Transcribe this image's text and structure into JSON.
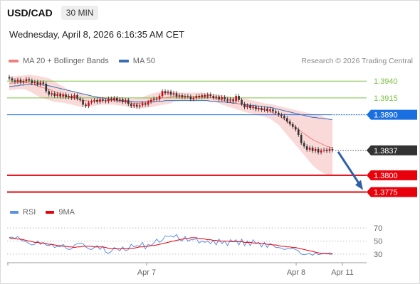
{
  "header": {
    "pair": "USD/CAD",
    "timeframe": "30 MIN"
  },
  "dateline": "Wednesday, April 8, 2026 6:16:35 AM CET",
  "legend": {
    "bollinger": "MA 20 + Bollinger Bands",
    "ma50": "MA 50"
  },
  "credit": "Research © 2026 Trading Central",
  "rsi_legend": {
    "rsi": "RSI",
    "ma": "9MA"
  },
  "colors": {
    "bollinger_band": "#f8cccc",
    "ma20": "#f08080",
    "ma50": "#3a6fb5",
    "resistance": "#7cc242",
    "pivot": "#1a6fe0",
    "support": "#e8000b",
    "current": "#333333",
    "arrow": "#2e5fa8",
    "rsi": "#5b8ee6",
    "rsi_ma": "#e8000b"
  },
  "chart_data": [
    {
      "type": "candlestick",
      "title": "USD/CAD",
      "timeframe": "30 MIN",
      "x_ticks": [
        "Apr 7",
        "Apr 8",
        "Apr 11"
      ],
      "ylim": [
        1.3765,
        1.3955
      ],
      "levels": [
        {
          "value": 1.394,
          "label": "1.3940",
          "kind": "resistance"
        },
        {
          "value": 1.3915,
          "label": "1.3915",
          "kind": "resistance"
        },
        {
          "value": 1.389,
          "label": "1.3890",
          "kind": "pivot"
        },
        {
          "value": 1.3837,
          "label": "1.3837",
          "kind": "current"
        },
        {
          "value": 1.38,
          "label": "1.3800",
          "kind": "support"
        },
        {
          "value": 1.3775,
          "label": "1.3775",
          "kind": "support"
        }
      ],
      "close": [
        1.3944,
        1.3941,
        1.3939,
        1.3942,
        1.3938,
        1.394,
        1.3943,
        1.3941,
        1.3937,
        1.3939,
        1.3935,
        1.3938,
        1.3936,
        1.3925,
        1.392,
        1.3922,
        1.3918,
        1.3921,
        1.3917,
        1.392,
        1.3916,
        1.3918,
        1.3915,
        1.3919,
        1.3914,
        1.3912,
        1.3905,
        1.3903,
        1.3908,
        1.391,
        1.3912,
        1.3909,
        1.3913,
        1.3911,
        1.391,
        1.3914,
        1.3912,
        1.3915,
        1.3911,
        1.3913,
        1.3909,
        1.3912,
        1.3906,
        1.3903,
        1.3905,
        1.3902,
        1.3904,
        1.3907,
        1.3905,
        1.3909,
        1.3912,
        1.3914,
        1.3913,
        1.3918,
        1.3925,
        1.3922,
        1.3924,
        1.392,
        1.3922,
        1.3917,
        1.3919,
        1.3916,
        1.3918,
        1.3917,
        1.3913,
        1.3915,
        1.3918,
        1.3916,
        1.3919,
        1.3917,
        1.392,
        1.3918,
        1.3915,
        1.3917,
        1.3913,
        1.3916,
        1.3913,
        1.3911,
        1.3913,
        1.391,
        1.3918,
        1.3912,
        1.3906,
        1.3901,
        1.3904,
        1.39,
        1.3902,
        1.3898,
        1.39,
        1.3897,
        1.3899,
        1.3896,
        1.3898,
        1.3895,
        1.3893,
        1.389,
        1.3888,
        1.3885,
        1.388,
        1.3876,
        1.3872,
        1.3868,
        1.386,
        1.3848,
        1.3843,
        1.3838,
        1.3841,
        1.3836,
        1.3839,
        1.3834,
        1.3837,
        1.3838,
        1.3836,
        1.3839,
        1.3837
      ],
      "ma20": [
        1.3936,
        1.3937,
        1.3937,
        1.3938,
        1.3938,
        1.3938,
        1.3938,
        1.3937,
        1.3936,
        1.3934,
        1.3933,
        1.3931,
        1.393,
        1.3929,
        1.3928,
        1.3926,
        1.3924,
        1.3923,
        1.3921,
        1.392,
        1.3918,
        1.3916,
        1.3915,
        1.3914,
        1.3913,
        1.3912,
        1.3911,
        1.3911,
        1.391,
        1.391,
        1.391,
        1.3911,
        1.3911,
        1.3911,
        1.3911,
        1.3911,
        1.3911,
        1.3911,
        1.391,
        1.391,
        1.3909,
        1.3909,
        1.3908,
        1.3907,
        1.3907,
        1.3907,
        1.3907,
        1.3908,
        1.3909,
        1.391,
        1.3911,
        1.3912,
        1.3913,
        1.3914,
        1.3915,
        1.3915,
        1.3916,
        1.3916,
        1.3917,
        1.3917,
        1.3917,
        1.3917,
        1.3917,
        1.3917,
        1.3917,
        1.3917,
        1.3917,
        1.3917,
        1.3917,
        1.3916,
        1.3916,
        1.3915,
        1.3915,
        1.3914,
        1.3913,
        1.3912,
        1.3911,
        1.391,
        1.3909,
        1.3908,
        1.3907,
        1.3906,
        1.3905,
        1.3904,
        1.3903,
        1.3902,
        1.3901,
        1.39,
        1.3899,
        1.3898,
        1.3897,
        1.3896,
        1.3895,
        1.3893,
        1.3891,
        1.3889,
        1.3886,
        1.3883,
        1.388,
        1.3877,
        1.3874,
        1.3871,
        1.3868,
        1.3865,
        1.3862,
        1.3859,
        1.3856,
        1.3853,
        1.3851,
        1.3849,
        1.3847,
        1.3845,
        1.3843,
        1.3842,
        1.3841
      ],
      "ma50": [
        1.3932,
        1.3932,
        1.3933,
        1.3933,
        1.3934,
        1.3934,
        1.3935,
        1.3935,
        1.3935,
        1.3935,
        1.3935,
        1.3935,
        1.3934,
        1.3934,
        1.3933,
        1.3932,
        1.3931,
        1.393,
        1.3929,
        1.3928,
        1.3927,
        1.3926,
        1.3925,
        1.3924,
        1.3923,
        1.3922,
        1.3921,
        1.392,
        1.3919,
        1.3918,
        1.3917,
        1.3916,
        1.3915,
        1.3915,
        1.3914,
        1.3913,
        1.3913,
        1.3912,
        1.3912,
        1.3911,
        1.3911,
        1.391,
        1.391,
        1.391,
        1.3909,
        1.3909,
        1.3909,
        1.3909,
        1.3909,
        1.3909,
        1.3909,
        1.3909,
        1.391,
        1.391,
        1.391,
        1.3911,
        1.3911,
        1.3911,
        1.3911,
        1.3911,
        1.3911,
        1.3911,
        1.3911,
        1.3911,
        1.3911,
        1.3911,
        1.3911,
        1.3911,
        1.3911,
        1.3911,
        1.3911,
        1.391,
        1.391,
        1.391,
        1.3909,
        1.3909,
        1.3909,
        1.3908,
        1.3908,
        1.3907,
        1.3907,
        1.3906,
        1.3906,
        1.3905,
        1.3905,
        1.3904,
        1.3904,
        1.3903,
        1.3903,
        1.3902,
        1.3902,
        1.3901,
        1.3901,
        1.39,
        1.3899,
        1.3898,
        1.3897,
        1.3896,
        1.3895,
        1.3894,
        1.3893,
        1.3892,
        1.3891,
        1.389,
        1.3889,
        1.3888,
        1.3887,
        1.3886,
        1.3886,
        1.3885,
        1.3885,
        1.3884,
        1.3884,
        1.3883,
        1.3883
      ],
      "band_width": [
        0.001,
        0.001,
        0.001,
        0.001,
        0.001,
        0.001,
        0.0011,
        0.0012,
        0.0013,
        0.0014,
        0.0015,
        0.0016,
        0.0016,
        0.0016,
        0.0016,
        0.0016,
        0.0015,
        0.0014,
        0.0013,
        0.0012,
        0.0011,
        0.001,
        0.001,
        0.001,
        0.001,
        0.001,
        0.001,
        0.0009,
        0.0008,
        0.0008,
        0.0007,
        0.0007,
        0.0006,
        0.0006,
        0.0006,
        0.0006,
        0.0006,
        0.0006,
        0.0006,
        0.0006,
        0.0006,
        0.0006,
        0.0007,
        0.0007,
        0.0007,
        0.0008,
        0.0008,
        0.0008,
        0.0009,
        0.0009,
        0.001,
        0.001,
        0.001,
        0.001,
        0.001,
        0.001,
        0.001,
        0.0009,
        0.0008,
        0.0007,
        0.0006,
        0.0006,
        0.0006,
        0.0006,
        0.0006,
        0.0006,
        0.0006,
        0.0006,
        0.0006,
        0.0006,
        0.0006,
        0.0006,
        0.0006,
        0.0006,
        0.0006,
        0.0007,
        0.0007,
        0.0008,
        0.0008,
        0.0008,
        0.0009,
        0.0009,
        0.0009,
        0.001,
        0.001,
        0.001,
        0.001,
        0.001,
        0.001,
        0.001,
        0.001,
        0.001,
        0.0011,
        0.0012,
        0.0013,
        0.0014,
        0.0016,
        0.0018,
        0.002,
        0.0022,
        0.0024,
        0.0026,
        0.0028,
        0.003,
        0.0032,
        0.0034,
        0.0036,
        0.0038,
        0.004,
        0.0041,
        0.0042,
        0.0042,
        0.0042,
        0.0042,
        0.0042
      ]
    },
    {
      "type": "line",
      "title": "RSI",
      "ylim": [
        20,
        80
      ],
      "y_ticks": [
        "70",
        "50",
        "30"
      ],
      "series": [
        {
          "name": "RSI",
          "values": [
            55,
            56,
            54,
            57,
            52,
            50,
            49,
            46,
            44,
            45,
            50,
            45,
            48,
            44,
            43,
            45,
            40,
            42,
            41,
            45,
            39,
            37,
            38,
            44,
            46,
            47,
            46,
            41,
            38,
            37,
            40,
            43,
            37,
            42,
            33,
            31,
            34,
            40,
            38,
            35,
            41,
            35,
            37,
            45,
            41,
            43,
            42,
            48,
            38,
            45,
            43,
            47,
            53,
            48,
            51,
            58,
            57,
            58,
            56,
            60,
            52,
            50,
            57,
            50,
            52,
            52,
            54,
            47,
            50,
            48,
            50,
            46,
            51,
            44,
            53,
            46,
            50,
            43,
            52,
            49,
            52,
            44,
            53,
            43,
            50,
            43,
            52,
            46,
            48,
            41,
            48,
            40,
            46,
            44,
            40,
            40,
            39,
            37,
            38,
            38,
            39,
            37,
            35,
            30,
            29,
            30,
            31,
            28,
            32,
            29,
            30,
            31,
            30,
            32,
            31
          ]
        },
        {
          "name": "9MA",
          "values": [
            55,
            54,
            54,
            53,
            53,
            52,
            51,
            50,
            49,
            48,
            48,
            47,
            47,
            46,
            45,
            45,
            44,
            43,
            43,
            42,
            42,
            41,
            41,
            40,
            41,
            41,
            42,
            42,
            42,
            42,
            41,
            41,
            41,
            41,
            40,
            39,
            38,
            38,
            38,
            38,
            38,
            38,
            39,
            39,
            39,
            40,
            41,
            41,
            42,
            42,
            43,
            43,
            44,
            45,
            46,
            47,
            48,
            49,
            50,
            51,
            52,
            53,
            54,
            54,
            55,
            55,
            55,
            54,
            54,
            53,
            52,
            52,
            51,
            51,
            50,
            50,
            50,
            50,
            49,
            49,
            49,
            49,
            49,
            48,
            48,
            48,
            47,
            47,
            47,
            46,
            46,
            45,
            45,
            44,
            44,
            43,
            42,
            42,
            41,
            41,
            40,
            40,
            39,
            38,
            37,
            36,
            35,
            34,
            33,
            32,
            31,
            31,
            31,
            30,
            30
          ]
        }
      ]
    }
  ]
}
